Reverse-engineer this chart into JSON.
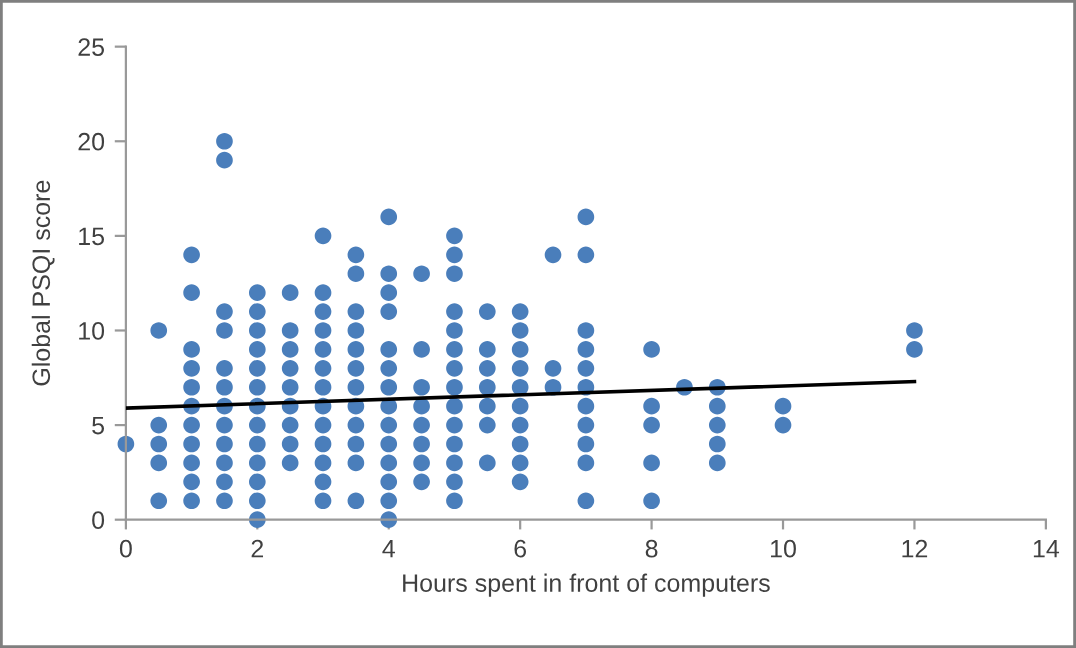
{
  "chart_data": {
    "type": "scatter",
    "xlabel": "Hours spent in front of computers",
    "ylabel": "Global PSQI score",
    "xlim": [
      0,
      14
    ],
    "ylim": [
      0,
      25
    ],
    "xticks": [
      0,
      2,
      4,
      6,
      8,
      10,
      12,
      14
    ],
    "yticks": [
      0,
      5,
      10,
      15,
      20,
      25
    ],
    "grid": false,
    "legend": false,
    "marker": "circle",
    "series": [
      {
        "type": "scatter",
        "color": "#4a7ebb",
        "x": [
          0,
          0.5,
          0.5,
          0.5,
          0.5,
          0.5,
          1,
          1,
          1,
          1,
          1,
          1,
          1,
          1,
          1,
          1,
          1,
          1.5,
          1.5,
          1.5,
          1.5,
          1.5,
          1.5,
          1.5,
          1.5,
          1.5,
          1.5,
          1.5,
          1.5,
          2,
          2,
          2,
          2,
          2,
          2,
          2,
          2,
          2,
          2,
          2,
          2,
          2,
          2.5,
          2.5,
          2.5,
          2.5,
          2.5,
          2.5,
          2.5,
          2.5,
          2.5,
          3,
          3,
          3,
          3,
          3,
          3,
          3,
          3,
          3,
          3,
          3,
          3,
          3,
          3.5,
          3.5,
          3.5,
          3.5,
          3.5,
          3.5,
          3.5,
          3.5,
          3.5,
          3.5,
          3.5,
          3.5,
          4,
          4,
          4,
          4,
          4,
          4,
          4,
          4,
          4,
          4,
          4,
          4,
          4,
          4,
          4.5,
          4.5,
          4.5,
          4.5,
          4.5,
          4.5,
          4.5,
          4.5,
          5,
          5,
          5,
          5,
          5,
          5,
          5,
          5,
          5,
          5,
          5,
          5,
          5,
          5,
          5.5,
          5.5,
          5.5,
          5.5,
          5.5,
          5.5,
          5.5,
          6,
          6,
          6,
          6,
          6,
          6,
          6,
          6,
          6,
          6,
          6.5,
          6.5,
          6.5,
          7,
          7,
          7,
          7,
          7,
          7,
          7,
          7,
          7,
          7,
          7,
          8,
          8,
          8,
          8,
          8,
          8.5,
          9,
          9,
          9,
          9,
          9,
          10,
          10,
          12,
          12
        ],
        "values": [
          4,
          10,
          5,
          4,
          3,
          1,
          14,
          12,
          9,
          8,
          7,
          6,
          5,
          4,
          3,
          2,
          1,
          20,
          19,
          11,
          10,
          8,
          7,
          6,
          5,
          4,
          3,
          2,
          1,
          12,
          11,
          10,
          9,
          8,
          7,
          6,
          5,
          4,
          3,
          2,
          1,
          0,
          12,
          10,
          9,
          8,
          7,
          6,
          5,
          4,
          3,
          15,
          12,
          11,
          10,
          9,
          8,
          7,
          6,
          5,
          4,
          3,
          2,
          1,
          14,
          13,
          11,
          10,
          9,
          8,
          7,
          6,
          5,
          4,
          3,
          1,
          16,
          13,
          12,
          11,
          9,
          8,
          7,
          6,
          5,
          4,
          3,
          2,
          1,
          0,
          13,
          9,
          7,
          6,
          5,
          4,
          3,
          2,
          15,
          14,
          13,
          11,
          10,
          9,
          8,
          7,
          6,
          5,
          4,
          3,
          2,
          1,
          11,
          9,
          8,
          7,
          6,
          5,
          3,
          11,
          10,
          9,
          8,
          7,
          6,
          5,
          4,
          3,
          2,
          14,
          8,
          7,
          16,
          14,
          10,
          9,
          8,
          7,
          6,
          5,
          4,
          3,
          1,
          9,
          6,
          5,
          3,
          1,
          7,
          7,
          6,
          5,
          4,
          3,
          6,
          5,
          10,
          9
        ]
      },
      {
        "type": "line",
        "color": "#000000",
        "marker": "none",
        "line_style": "solid",
        "x": [
          0,
          12
        ],
        "values": [
          5.9,
          7.3
        ]
      }
    ]
  }
}
